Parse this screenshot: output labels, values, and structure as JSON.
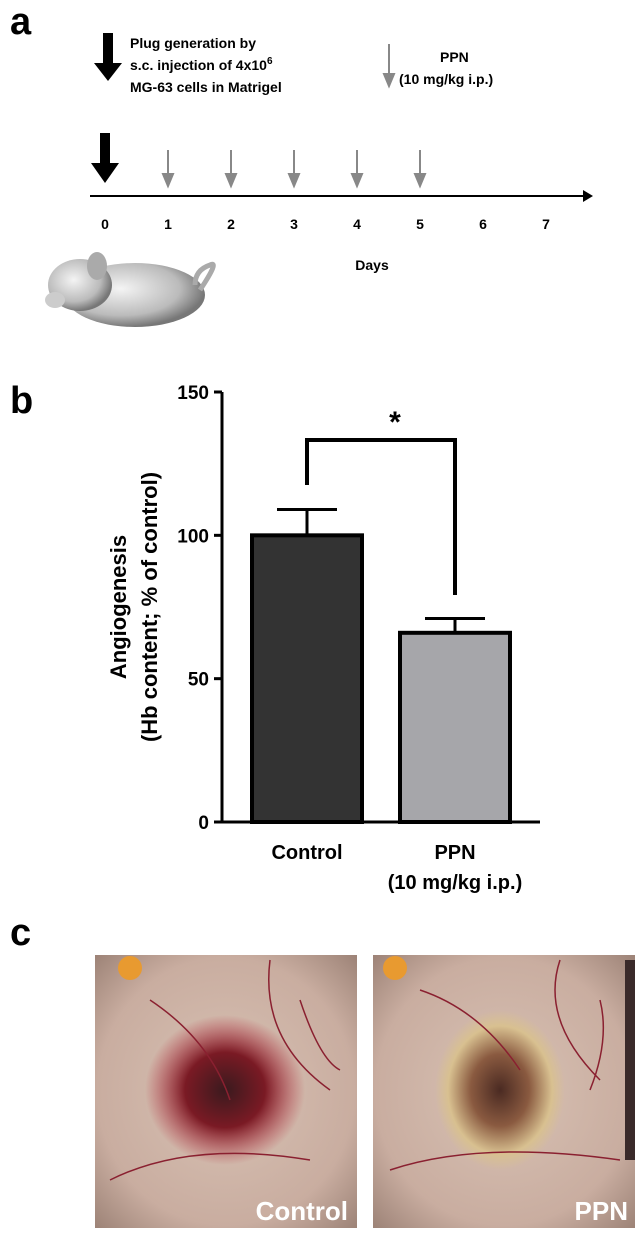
{
  "panel_a": {
    "label": "a",
    "legend_plug": [
      "Plug generation by",
      "s.c. injection of 4x10",
      "MG-63 cells in Matrigel"
    ],
    "legend_plug_exponent": "6",
    "legend_ppn": [
      "PPN",
      "(10 mg/kg i.p.)"
    ],
    "plug_day": 0,
    "injection_days": [
      1,
      2,
      3,
      4,
      5
    ],
    "days": [
      0,
      1,
      2,
      3,
      4,
      5,
      6,
      7
    ],
    "xlabel": "Days"
  },
  "chart_data": {
    "type": "bar",
    "panel_label": "b",
    "ylabel": [
      "Angiogenesis",
      "(Hb content; % of control)"
    ],
    "categories": [
      "Control",
      "PPN"
    ],
    "category_notes": [
      null,
      "(10 mg/kg i.p.)"
    ],
    "values": [
      100,
      66
    ],
    "errors": [
      9,
      5
    ],
    "colors": [
      "#333333",
      "#a6a6aa"
    ],
    "ylim": [
      0,
      150
    ],
    "yticks": [
      0,
      50,
      100,
      150
    ],
    "annotation": "*"
  },
  "panel_c": {
    "label": "c",
    "captions": [
      "Control",
      "PPN"
    ]
  }
}
